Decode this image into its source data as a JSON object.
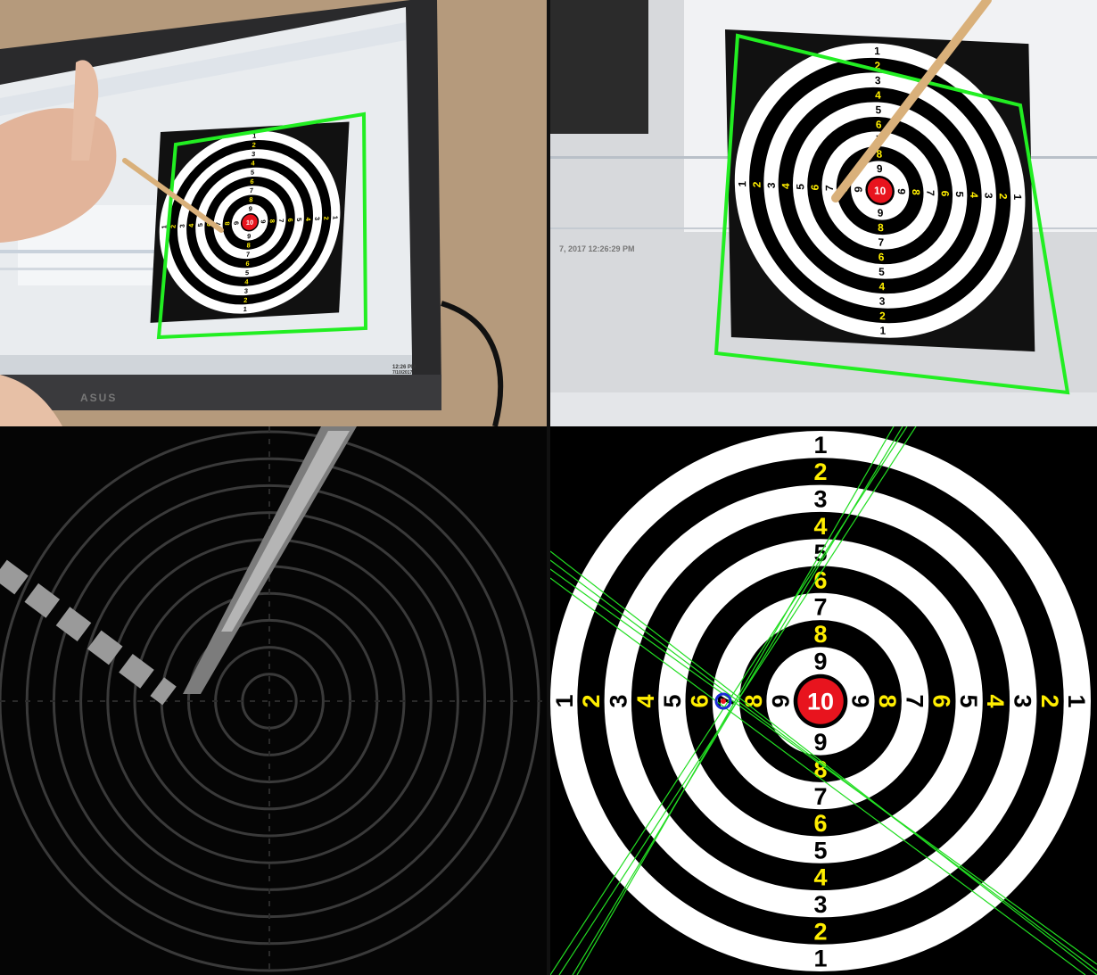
{
  "panels": {
    "camera_view": {
      "label": "camera-view"
    },
    "zoomed_view": {
      "label": "zoomed-view"
    },
    "difference_view": {
      "label": "difference-view"
    },
    "rectified_view": {
      "label": "rectified-view"
    }
  },
  "target": {
    "ring_numbers": [
      "1",
      "2",
      "3",
      "4",
      "5",
      "6",
      "7",
      "8",
      "9",
      "10"
    ],
    "yellow_numbers": [
      "2",
      "4",
      "6",
      "8"
    ],
    "center_label": "10",
    "colors": {
      "black": "#000000",
      "white": "#ffffff",
      "yellow": "#ffee00",
      "red": "#e8141e",
      "detection_line": "#22dd22",
      "frame_outline": "#22ee22"
    }
  },
  "monitor": {
    "brand": "ASUS",
    "clock_time": "12:26 PM",
    "clock_date": "7/10/2017",
    "console_text": "7, 2017 12:26:29 PM"
  }
}
